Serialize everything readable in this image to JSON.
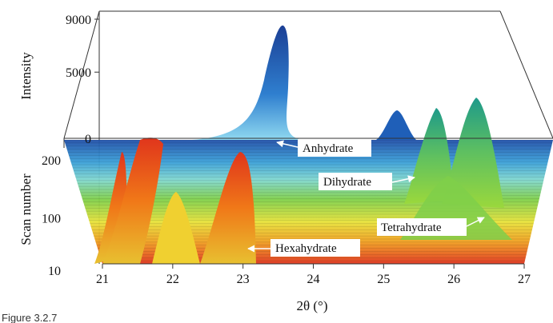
{
  "figure": {
    "caption_partial": "Figure 3.2.7"
  },
  "chart_data": {
    "type": "area",
    "title": "",
    "xlabel": "2θ (°)",
    "ylabel": "Intensity",
    "zlabel": "Scan number",
    "x_ticks": [
      "21",
      "22",
      "23",
      "24",
      "25",
      "26",
      "27"
    ],
    "intensity_ticks": [
      "0",
      "5000",
      "9000"
    ],
    "scan_ticks": [
      "10",
      "100",
      "200"
    ],
    "xlim": [
      21,
      27
    ],
    "intensity_lim": [
      0,
      9000
    ],
    "scan_lim": [
      10,
      200
    ],
    "grid": false,
    "colormap": [
      "#1f4fa8",
      "#3aa0d8",
      "#7fd6cf",
      "#7fcf4a",
      "#e6e23a",
      "#f0a020",
      "#e0351c"
    ],
    "series": [
      {
        "name": "Anhydrate",
        "peaks_2theta": [
          23.55,
          25.2,
          25.7,
          26.3
        ],
        "peak_intensity": [
          9000,
          3000,
          4500,
          5200
        ],
        "scan_range": [
          200,
          200
        ]
      },
      {
        "name": "Dihydrate",
        "peaks_2theta": [
          25.75,
          26.3
        ],
        "peak_intensity": [
          4500,
          5000
        ],
        "scan_range": [
          180,
          100
        ]
      },
      {
        "name": "Tetrahydrate",
        "peaks_2theta": [
          25.7,
          26.3
        ],
        "peak_intensity": [
          3000,
          4000
        ],
        "scan_range": [
          100,
          40
        ]
      },
      {
        "name": "Hexahydrate",
        "peaks_2theta": [
          21.35,
          21.6,
          22.25,
          23.0
        ],
        "peak_intensity": [
          4000,
          5000,
          2500,
          4500
        ],
        "scan_range": [
          190,
          10
        ]
      }
    ]
  },
  "annotations": {
    "anhydrate": "Anhydrate",
    "dihydrate": "Dihydrate",
    "tetrahydrate": "Tetrahydrate",
    "hexahydrate": "Hexahydrate"
  }
}
